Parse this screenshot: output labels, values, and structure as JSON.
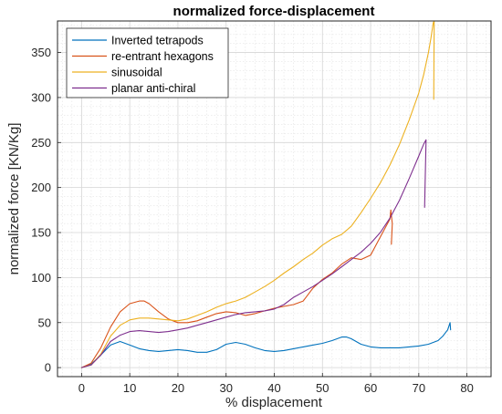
{
  "chart_data": {
    "type": "line",
    "title": "normalized force-displacement",
    "xlabel": "% displacement",
    "ylabel": "normalized force [KN/Kg]",
    "xlim": [
      -5,
      85
    ],
    "ylim": [
      -10,
      385
    ],
    "xticks": [
      0,
      10,
      20,
      30,
      40,
      50,
      60,
      70,
      80
    ],
    "yticks": [
      0,
      50,
      100,
      150,
      200,
      250,
      300,
      350
    ],
    "grid": true,
    "minor_grid": true,
    "legend_position": "top-left",
    "series": [
      {
        "name": "Inverted tetrapods",
        "color": "#0072BD",
        "x": [
          0,
          2,
          4,
          6,
          8,
          10,
          12,
          14,
          16,
          18,
          20,
          22,
          24,
          26,
          28,
          30,
          32,
          34,
          36,
          38,
          40,
          42,
          44,
          46,
          48,
          50,
          52,
          54,
          55,
          56,
          58,
          60,
          62,
          64,
          66,
          68,
          70,
          72,
          74,
          75,
          76,
          76.5,
          76.6
        ],
        "y": [
          0,
          4,
          14,
          25,
          29,
          25,
          21,
          19,
          18,
          19,
          20,
          19,
          17,
          17,
          20,
          26,
          28,
          26,
          22,
          19,
          18,
          19,
          21,
          23,
          25,
          27,
          30,
          34,
          34,
          32,
          26,
          23,
          22,
          22,
          22,
          23,
          24,
          26,
          30,
          35,
          42,
          50,
          42
        ]
      },
      {
        "name": "re-entrant hexagons",
        "color": "#D95319",
        "x": [
          0,
          2,
          4,
          6,
          8,
          10,
          12,
          13,
          14,
          16,
          18,
          20,
          22,
          24,
          26,
          28,
          30,
          32,
          34,
          36,
          38,
          40,
          42,
          44,
          46,
          48,
          50,
          52,
          54,
          56,
          58,
          60,
          62,
          63,
          64,
          64.2,
          64.5,
          64.3
        ],
        "y": [
          0,
          5,
          22,
          45,
          62,
          71,
          74,
          74,
          71,
          62,
          54,
          50,
          50,
          52,
          56,
          60,
          62,
          61,
          58,
          60,
          63,
          66,
          68,
          70,
          74,
          88,
          98,
          105,
          115,
          122,
          120,
          125,
          145,
          155,
          165,
          175,
          160,
          137
        ]
      },
      {
        "name": "sinusoidal",
        "color": "#EDB120",
        "x": [
          0,
          2,
          4,
          6,
          8,
          10,
          12,
          14,
          16,
          18,
          20,
          22,
          24,
          26,
          28,
          30,
          32,
          34,
          36,
          38,
          40,
          42,
          44,
          46,
          48,
          50,
          52,
          54,
          56,
          58,
          60,
          62,
          64,
          66,
          68,
          70,
          71,
          72,
          72.5,
          73,
          73.2,
          73.1
        ],
        "y": [
          0,
          3,
          15,
          35,
          47,
          53,
          55,
          55,
          54,
          53,
          52,
          54,
          58,
          62,
          67,
          71,
          74,
          78,
          84,
          90,
          97,
          105,
          112,
          120,
          127,
          136,
          143,
          148,
          157,
          172,
          188,
          205,
          225,
          248,
          275,
          305,
          325,
          350,
          365,
          383,
          385,
          298
        ]
      },
      {
        "name": "planar anti-chiral",
        "color": "#7E2F8E",
        "x": [
          0,
          2,
          4,
          6,
          8,
          10,
          12,
          14,
          16,
          18,
          20,
          22,
          24,
          26,
          28,
          30,
          32,
          34,
          36,
          38,
          40,
          42,
          44,
          46,
          48,
          50,
          52,
          54,
          56,
          58,
          60,
          62,
          64,
          66,
          68,
          70,
          71,
          71.5,
          71.2
        ],
        "y": [
          0,
          3,
          14,
          29,
          36,
          40,
          41,
          40,
          39,
          40,
          42,
          44,
          47,
          50,
          53,
          56,
          59,
          61,
          62,
          63,
          65,
          70,
          78,
          84,
          90,
          97,
          104,
          112,
          120,
          128,
          138,
          150,
          166,
          186,
          210,
          235,
          248,
          253,
          178
        ]
      }
    ]
  }
}
